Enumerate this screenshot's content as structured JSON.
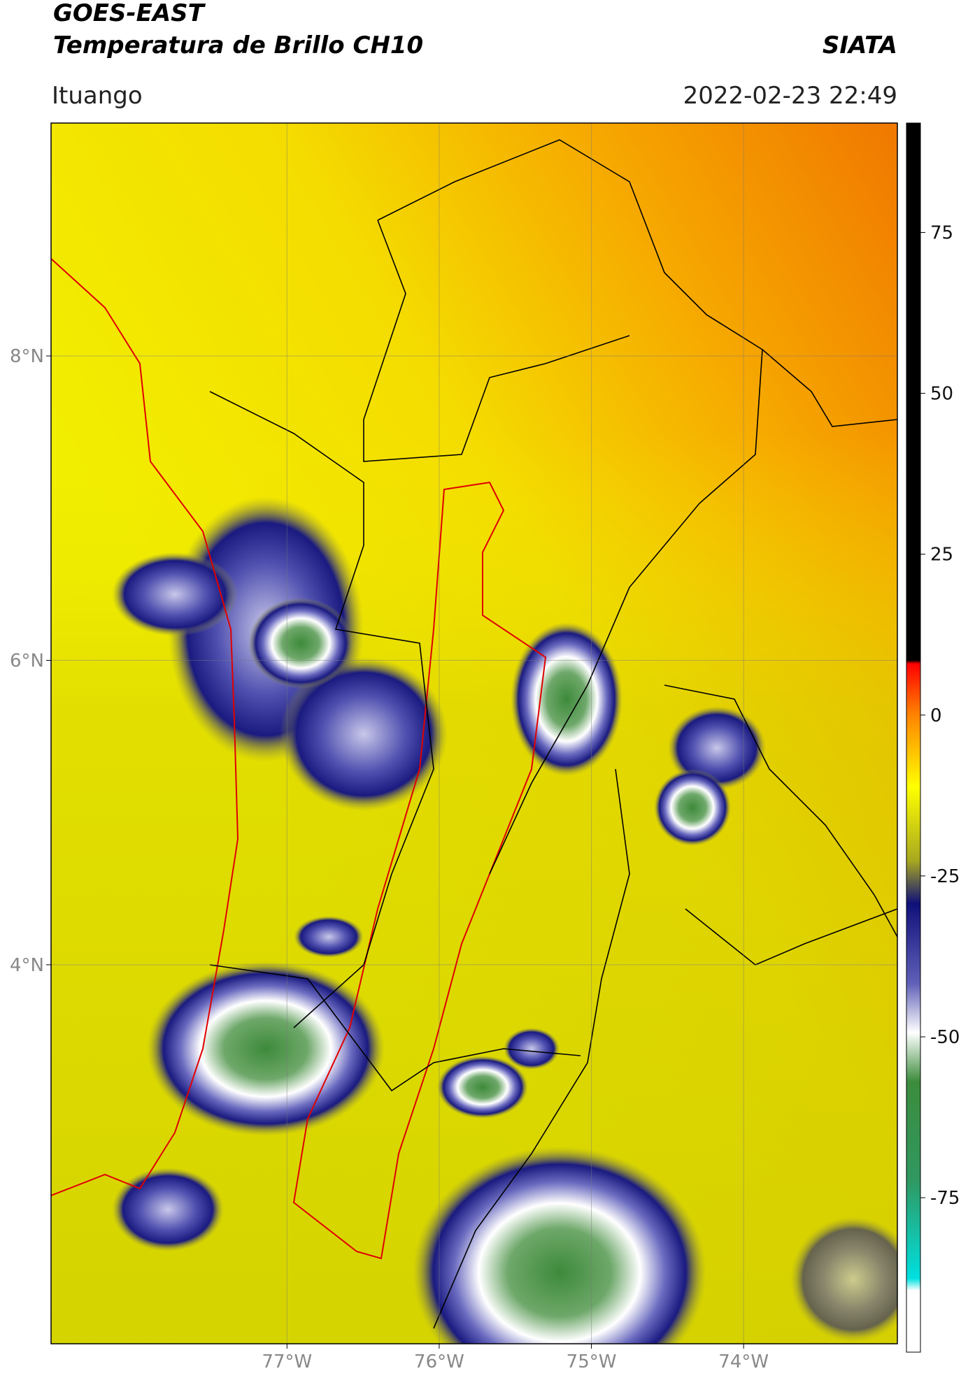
{
  "header": {
    "title_line1": "GOES-EAST",
    "title_line2": "Temperatura de Brillo CH10",
    "source": "SIATA",
    "location": "Ituango",
    "datetime": "2022-02-23 22:49"
  },
  "map": {
    "xlim": [
      -78.55,
      -72.99
    ],
    "ylim": [
      1.51,
      9.53
    ],
    "xticks": [
      {
        "value": -77,
        "label": "77°W"
      },
      {
        "value": -76,
        "label": "76°W"
      },
      {
        "value": -75,
        "label": "75°W"
      },
      {
        "value": -74,
        "label": "74°W"
      }
    ],
    "yticks": [
      {
        "value": 8,
        "label": "8°N"
      },
      {
        "value": 6,
        "label": "6°N"
      },
      {
        "value": 4,
        "label": "4°N"
      }
    ]
  },
  "colorbar": {
    "lim": [
      -99,
      92
    ],
    "ticks": [
      75,
      50,
      25,
      0,
      -25,
      -50,
      -75
    ]
  }
}
